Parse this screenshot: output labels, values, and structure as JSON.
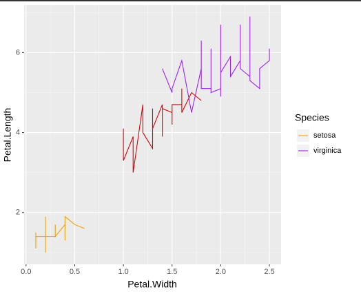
{
  "chart_data": {
    "type": "line",
    "x_label": "Petal.Width",
    "y_label": "Petal.Length",
    "xlim": [
      -0.02,
      2.62
    ],
    "ylim": [
      0.705,
      7.195
    ],
    "xticks": [
      {
        "value": 0,
        "label": "0.0"
      },
      0.5,
      {
        "value": 1,
        "label": "1.0"
      },
      1.5,
      {
        "value": 2,
        "label": "2.0"
      },
      2.5
    ],
    "yticks": [
      2,
      4,
      6
    ],
    "grid": true,
    "legend_title": "Species",
    "legend_position": "right",
    "series": [
      {
        "name": "setosa",
        "color": "#f0a000",
        "x": [
          0.1,
          0.1,
          0.1,
          0.2,
          0.2,
          0.2,
          0.2,
          0.3,
          0.3,
          0.3,
          0.4,
          0.4,
          0.4,
          0.4,
          0.5,
          0.6
        ],
        "values": [
          1.5,
          1.1,
          1.4,
          1.4,
          1.9,
          1.0,
          1.4,
          1.4,
          1.7,
          1.4,
          1.7,
          1.9,
          1.3,
          1.9,
          1.7,
          1.6
        ]
      },
      {
        "color": "#dd0000",
        "x": [
          1.0,
          1.0,
          1.1,
          1.1,
          1.2,
          1.2,
          1.3,
          1.3,
          1.3,
          1.4,
          1.4,
          1.4,
          1.5,
          1.5,
          1.5,
          1.6,
          1.6,
          1.6,
          1.7,
          1.8
        ],
        "values": [
          4.1,
          3.3,
          3.9,
          3.0,
          4.7,
          4.0,
          3.6,
          4.6,
          4.1,
          4.7,
          3.9,
          4.6,
          4.5,
          4.2,
          4.7,
          4.7,
          5.1,
          4.5,
          5.0,
          4.8
        ]
      },
      {
        "name": "virginica",
        "color": "#a020f0",
        "x": [
          1.4,
          1.5,
          1.5,
          1.6,
          1.7,
          1.8,
          1.8,
          1.8,
          1.9,
          1.9,
          1.9,
          2.0,
          2.0,
          2.0,
          2.0,
          2.1,
          2.1,
          2.2,
          2.2,
          2.2,
          2.3,
          2.3,
          2.3,
          2.4,
          2.4,
          2.5,
          2.5
        ],
        "values": [
          5.6,
          5.0,
          5.1,
          5.8,
          4.5,
          5.6,
          6.3,
          5.1,
          5.1,
          6.1,
          5.0,
          5.1,
          6.7,
          4.9,
          5.5,
          5.9,
          5.4,
          5.8,
          6.7,
          5.6,
          5.4,
          6.9,
          5.3,
          5.1,
          5.6,
          5.8,
          6.1
        ]
      }
    ]
  }
}
